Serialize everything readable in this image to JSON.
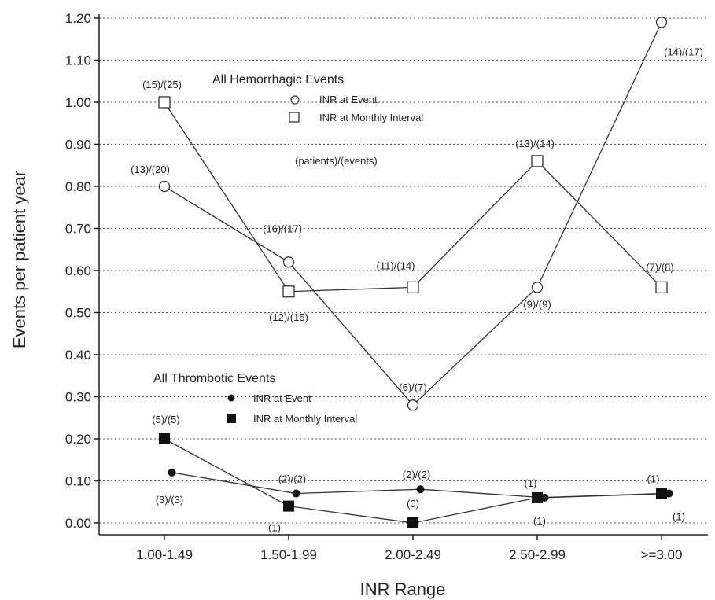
{
  "chart_data": {
    "type": "line",
    "xlabel": "INR Range",
    "ylabel": "Events per patient year",
    "categories": [
      "1.00-1.49",
      "1.50-1.99",
      "2.00-2.49",
      "2.50-2.99",
      ">=3.00"
    ],
    "ylim": [
      0,
      1.2
    ],
    "yticks": [
      "0.00",
      "0.10",
      "0.20",
      "0.30",
      "0.40",
      "0.50",
      "0.60",
      "0.70",
      "0.80",
      "0.90",
      "1.00",
      "1.10",
      "1.20"
    ],
    "grid": "horizontal dotted",
    "legend_groups": [
      {
        "title": "All Hemorrhagic Events",
        "entries": [
          "INR at Event",
          "INR at Monthly Interval"
        ],
        "note": "(patients)/(events)"
      },
      {
        "title": "All Thrombotic Events",
        "entries": [
          "INR at Event",
          "INR at Monthly Interval"
        ]
      }
    ],
    "series": [
      {
        "name": "INR at Event",
        "group": "All Hemorrhagic Events",
        "marker": "open-circle",
        "values": [
          0.8,
          0.62,
          0.28,
          0.56,
          1.19
        ],
        "labels": [
          "(13)/(20)",
          "(16)/(17)",
          "(6)/(7)",
          "(9)/(9)",
          "(14)/(17)"
        ]
      },
      {
        "name": "INR at Monthly Interval",
        "group": "All Hemorrhagic Events",
        "marker": "open-square",
        "values": [
          1.0,
          0.55,
          0.56,
          0.86,
          0.56
        ],
        "labels": [
          "(15)/(25)",
          "(12)/(15)",
          "(11)/(14)",
          "(13)/(14)",
          "(7)/(8)"
        ]
      },
      {
        "name": "INR at Event",
        "group": "All Thrombotic Events",
        "marker": "filled-circle",
        "x_offset": 0.06,
        "values": [
          0.12,
          0.07,
          0.08,
          0.06,
          0.07
        ],
        "labels": [
          "(3)/(3)",
          "(2)/(2)",
          "(2)/(2)",
          "(1)",
          "(1)"
        ]
      },
      {
        "name": "INR at Monthly Interval",
        "group": "All Thrombotic Events",
        "marker": "filled-square",
        "values": [
          0.2,
          0.04,
          0.0,
          0.06,
          0.07
        ],
        "labels": [
          "(5)/(5)",
          "(1)",
          "(0)",
          "(1)",
          "(1)"
        ]
      }
    ]
  }
}
